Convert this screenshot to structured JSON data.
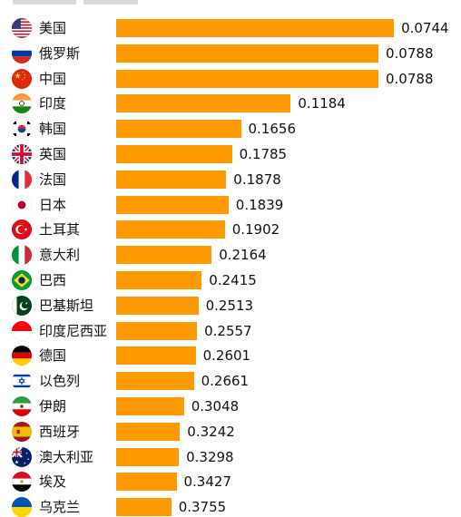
{
  "chart_data": {
    "type": "bar",
    "orientation": "horizontal",
    "title": "",
    "categories": [
      "美国",
      "俄罗斯",
      "中国",
      "印度",
      "韩国",
      "英国",
      "法国",
      "日本",
      "土耳其",
      "意大利",
      "巴西",
      "巴基斯坦",
      "印度尼西亚",
      "德国",
      "以色列",
      "伊朗",
      "西班牙",
      "澳大利亚",
      "埃及",
      "乌克兰"
    ],
    "values": [
      0.0744,
      0.0788,
      0.0788,
      0.1184,
      0.1656,
      0.1785,
      0.1878,
      0.1839,
      0.1902,
      0.2164,
      0.2415,
      0.2513,
      0.2557,
      0.2601,
      0.2661,
      0.3048,
      0.3242,
      0.3298,
      0.3427,
      0.3755
    ],
    "value_labels": [
      "0.0744",
      "0.0788",
      "0.0788",
      "0.1184",
      "0.1656",
      "0.1785",
      "0.1878",
      "0.1839",
      "0.1902",
      "0.2164",
      "0.2415",
      "0.2513",
      "0.2557",
      "0.2601",
      "0.2661",
      "0.3048",
      "0.3242",
      "0.3298",
      "0.3427",
      "0.3755"
    ],
    "flag_icons": [
      "flag-us-icon",
      "flag-ru-icon",
      "flag-cn-icon",
      "flag-in-icon",
      "flag-kr-icon",
      "flag-gb-icon",
      "flag-fr-icon",
      "flag-jp-icon",
      "flag-tr-icon",
      "flag-it-icon",
      "flag-br-icon",
      "flag-pk-icon",
      "flag-id-icon",
      "flag-de-icon",
      "flag-il-icon",
      "flag-ir-icon",
      "flag-es-icon",
      "flag-au-icon",
      "flag-eg-icon",
      "flag-ua-icon"
    ],
    "bar_color": "#ff9900",
    "grid": false,
    "legend": "none"
  }
}
